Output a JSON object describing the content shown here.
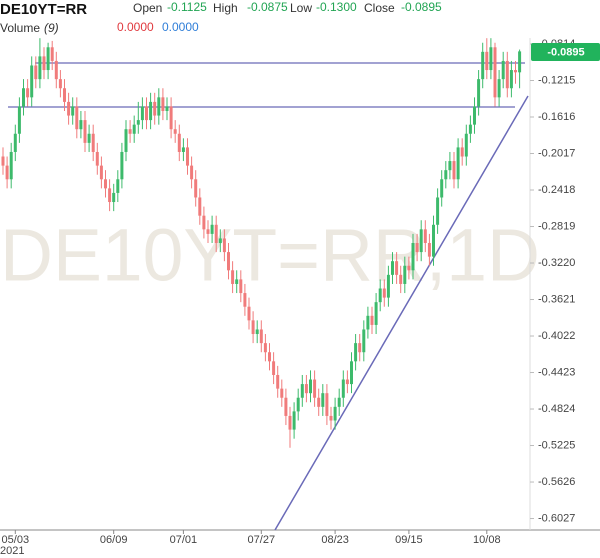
{
  "chart_data": {
    "type": "candlestick",
    "title": "DE10YT=RR",
    "watermark": "DE10YT=RR,1D",
    "header": {
      "open_label": "Open",
      "open": "-0.1125",
      "high_label": "High",
      "high": "-0.0875",
      "low_label": "Low",
      "low": "-0.1300",
      "close_label": "Close",
      "close": "-0.0895",
      "volume_label": "Volume",
      "volume_period": "(9)",
      "volume_value_1": "0.0000",
      "volume_value_2": "0.0000"
    },
    "categories": [
      null,
      null,
      null,
      "05/03",
      null,
      null,
      null,
      null,
      null,
      null,
      null,
      null,
      null,
      null,
      null,
      null,
      null,
      null,
      null,
      null,
      null,
      null,
      null,
      null,
      null,
      null,
      null,
      "06/09",
      null,
      null,
      null,
      null,
      null,
      null,
      null,
      null,
      null,
      null,
      null,
      null,
      null,
      null,
      null,
      null,
      "07/01",
      null,
      null,
      null,
      null,
      null,
      null,
      null,
      null,
      null,
      null,
      null,
      null,
      null,
      null,
      null,
      null,
      null,
      null,
      "07/27",
      null,
      null,
      null,
      null,
      null,
      null,
      null,
      null,
      null,
      null,
      null,
      null,
      null,
      null,
      null,
      null,
      null,
      "08/23",
      null,
      null,
      null,
      null,
      null,
      null,
      null,
      null,
      null,
      null,
      null,
      null,
      null,
      null,
      null,
      null,
      null,
      "09/15",
      null,
      null,
      null,
      null,
      null,
      null,
      null,
      null,
      null,
      null,
      null,
      null,
      null,
      null,
      null,
      null,
      null,
      null,
      "10/08",
      null,
      null,
      null,
      null,
      null,
      null,
      null,
      null
    ],
    "x_sublabel": "2021",
    "open": [
      -0.205,
      -0.215,
      -0.23,
      -0.2,
      -0.18,
      -0.15,
      -0.13,
      -0.14,
      -0.105,
      -0.12,
      -0.095,
      -0.11,
      -0.085,
      -0.1,
      -0.12,
      -0.13,
      -0.145,
      -0.16,
      -0.15,
      -0.175,
      -0.165,
      -0.19,
      -0.18,
      -0.2,
      -0.215,
      -0.23,
      -0.24,
      -0.255,
      -0.245,
      -0.23,
      -0.2,
      -0.175,
      -0.18,
      -0.17,
      -0.165,
      -0.15,
      -0.165,
      -0.145,
      -0.16,
      -0.14,
      -0.155,
      -0.15,
      -0.175,
      -0.18,
      -0.2,
      -0.195,
      -0.215,
      -0.23,
      -0.25,
      -0.27,
      -0.285,
      -0.29,
      -0.28,
      -0.3,
      -0.295,
      -0.31,
      -0.33,
      -0.345,
      -0.34,
      -0.355,
      -0.37,
      -0.385,
      -0.4,
      -0.395,
      -0.41,
      -0.42,
      -0.43,
      -0.445,
      -0.46,
      -0.47,
      -0.49,
      -0.505,
      -0.485,
      -0.47,
      -0.455,
      -0.465,
      -0.45,
      -0.47,
      -0.48,
      -0.465,
      -0.49,
      -0.495,
      -0.48,
      -0.47,
      -0.45,
      -0.455,
      -0.43,
      -0.41,
      -0.42,
      -0.395,
      -0.38,
      -0.39,
      -0.365,
      -0.35,
      -0.36,
      -0.335,
      -0.32,
      -0.335,
      -0.345,
      -0.325,
      -0.33,
      -0.3,
      -0.31,
      -0.285,
      -0.3,
      -0.315,
      -0.28,
      -0.25,
      -0.23,
      -0.22,
      -0.21,
      -0.23,
      -0.195,
      -0.205,
      -0.18,
      -0.17,
      -0.15,
      -0.12,
      -0.09,
      -0.11,
      -0.085,
      -0.14,
      -0.12,
      -0.1,
      -0.13,
      -0.11,
      -0.1125
    ],
    "high": [
      -0.195,
      -0.205,
      -0.19,
      -0.17,
      -0.14,
      -0.12,
      -0.12,
      -0.095,
      -0.095,
      -0.075,
      -0.085,
      -0.08,
      -0.078,
      -0.09,
      -0.11,
      -0.12,
      -0.135,
      -0.14,
      -0.14,
      -0.155,
      -0.155,
      -0.17,
      -0.17,
      -0.19,
      -0.205,
      -0.22,
      -0.23,
      -0.235,
      -0.22,
      -0.19,
      -0.165,
      -0.165,
      -0.16,
      -0.145,
      -0.14,
      -0.14,
      -0.135,
      -0.135,
      -0.13,
      -0.13,
      -0.14,
      -0.14,
      -0.165,
      -0.17,
      -0.185,
      -0.185,
      -0.205,
      -0.22,
      -0.24,
      -0.26,
      -0.275,
      -0.27,
      -0.27,
      -0.285,
      -0.285,
      -0.3,
      -0.32,
      -0.33,
      -0.33,
      -0.345,
      -0.36,
      -0.375,
      -0.385,
      -0.385,
      -0.4,
      -0.41,
      -0.42,
      -0.435,
      -0.45,
      -0.46,
      -0.48,
      -0.475,
      -0.46,
      -0.445,
      -0.445,
      -0.44,
      -0.44,
      -0.46,
      -0.455,
      -0.455,
      -0.48,
      -0.47,
      -0.46,
      -0.44,
      -0.44,
      -0.42,
      -0.4,
      -0.4,
      -0.385,
      -0.37,
      -0.37,
      -0.355,
      -0.34,
      -0.34,
      -0.325,
      -0.31,
      -0.31,
      -0.325,
      -0.315,
      -0.315,
      -0.29,
      -0.29,
      -0.275,
      -0.275,
      -0.29,
      -0.27,
      -0.24,
      -0.22,
      -0.21,
      -0.2,
      -0.2,
      -0.185,
      -0.185,
      -0.17,
      -0.16,
      -0.14,
      -0.11,
      -0.08,
      -0.075,
      -0.075,
      -0.08,
      -0.11,
      -0.09,
      -0.09,
      -0.1,
      -0.1,
      -0.0875
    ],
    "low": [
      -0.225,
      -0.24,
      -0.24,
      -0.21,
      -0.19,
      -0.16,
      -0.15,
      -0.15,
      -0.13,
      -0.13,
      -0.12,
      -0.12,
      -0.11,
      -0.13,
      -0.14,
      -0.155,
      -0.17,
      -0.17,
      -0.185,
      -0.185,
      -0.2,
      -0.2,
      -0.21,
      -0.225,
      -0.24,
      -0.25,
      -0.265,
      -0.265,
      -0.255,
      -0.24,
      -0.21,
      -0.19,
      -0.19,
      -0.18,
      -0.175,
      -0.175,
      -0.175,
      -0.17,
      -0.17,
      -0.165,
      -0.165,
      -0.185,
      -0.19,
      -0.21,
      -0.21,
      -0.225,
      -0.24,
      -0.26,
      -0.28,
      -0.295,
      -0.3,
      -0.3,
      -0.31,
      -0.31,
      -0.32,
      -0.34,
      -0.355,
      -0.355,
      -0.365,
      -0.38,
      -0.395,
      -0.41,
      -0.41,
      -0.42,
      -0.43,
      -0.44,
      -0.455,
      -0.47,
      -0.48,
      -0.5,
      -0.525,
      -0.515,
      -0.495,
      -0.48,
      -0.475,
      -0.475,
      -0.48,
      -0.49,
      -0.49,
      -0.5,
      -0.505,
      -0.505,
      -0.49,
      -0.48,
      -0.465,
      -0.465,
      -0.44,
      -0.43,
      -0.43,
      -0.405,
      -0.4,
      -0.4,
      -0.375,
      -0.37,
      -0.37,
      -0.345,
      -0.345,
      -0.355,
      -0.355,
      -0.34,
      -0.34,
      -0.32,
      -0.32,
      -0.31,
      -0.325,
      -0.325,
      -0.29,
      -0.26,
      -0.24,
      -0.23,
      -0.24,
      -0.24,
      -0.215,
      -0.215,
      -0.19,
      -0.18,
      -0.16,
      -0.13,
      -0.12,
      -0.12,
      -0.15,
      -0.15,
      -0.13,
      -0.14,
      -0.14,
      -0.125,
      -0.13
    ],
    "close": [
      -0.215,
      -0.23,
      -0.2,
      -0.18,
      -0.15,
      -0.13,
      -0.14,
      -0.105,
      -0.12,
      -0.095,
      -0.11,
      -0.085,
      -0.1,
      -0.12,
      -0.13,
      -0.145,
      -0.16,
      -0.15,
      -0.175,
      -0.165,
      -0.19,
      -0.18,
      -0.2,
      -0.215,
      -0.23,
      -0.24,
      -0.255,
      -0.245,
      -0.23,
      -0.2,
      -0.175,
      -0.18,
      -0.17,
      -0.165,
      -0.15,
      -0.165,
      -0.145,
      -0.16,
      -0.14,
      -0.155,
      -0.15,
      -0.175,
      -0.18,
      -0.2,
      -0.195,
      -0.215,
      -0.23,
      -0.25,
      -0.27,
      -0.285,
      -0.29,
      -0.28,
      -0.3,
      -0.295,
      -0.31,
      -0.33,
      -0.345,
      -0.34,
      -0.355,
      -0.37,
      -0.385,
      -0.4,
      -0.395,
      -0.41,
      -0.42,
      -0.43,
      -0.445,
      -0.46,
      -0.47,
      -0.49,
      -0.505,
      -0.485,
      -0.47,
      -0.455,
      -0.465,
      -0.45,
      -0.47,
      -0.48,
      -0.465,
      -0.49,
      -0.495,
      -0.48,
      -0.47,
      -0.45,
      -0.455,
      -0.43,
      -0.41,
      -0.42,
      -0.395,
      -0.38,
      -0.39,
      -0.365,
      -0.35,
      -0.36,
      -0.335,
      -0.32,
      -0.335,
      -0.345,
      -0.325,
      -0.33,
      -0.3,
      -0.31,
      -0.285,
      -0.3,
      -0.315,
      -0.28,
      -0.25,
      -0.23,
      -0.22,
      -0.21,
      -0.23,
      -0.195,
      -0.205,
      -0.18,
      -0.17,
      -0.15,
      -0.12,
      -0.09,
      -0.11,
      -0.085,
      -0.14,
      -0.12,
      -0.1,
      -0.13,
      -0.11,
      -0.1125,
      -0.0895
    ],
    "up_color": "#3dba6b",
    "down_color": "#f07b7b",
    "ylim": [
      -0.6153,
      -0.0748
    ],
    "yticks": [
      -0.0814,
      -0.1215,
      -0.1616,
      -0.2017,
      -0.2418,
      -0.2819,
      {
        "value": -0.322,
        "label": "-0.3220"
      },
      -0.3621,
      -0.4022,
      -0.4423,
      -0.4824,
      -0.5225,
      -0.5626,
      -0.6027
    ]
  }
}
